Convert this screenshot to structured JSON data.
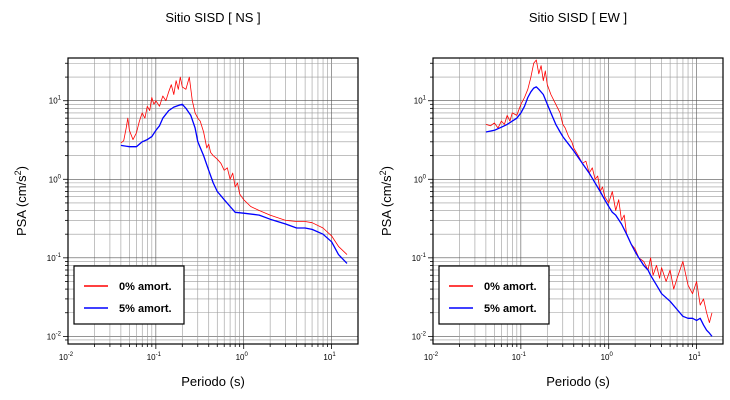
{
  "chart_data": [
    {
      "type": "line",
      "title": "Sitio SISD [ NS ]",
      "xlabel": "Periodo (s)",
      "ylabel_main": "PSA (cm/s",
      "ylabel_sup": "2",
      "ylabel_end": ")",
      "xscale": "log",
      "yscale": "log",
      "xlim": [
        0.01,
        20
      ],
      "ylim": [
        0.008,
        35
      ],
      "grid": true,
      "legend_position": "bottom-left",
      "xticks": [
        {
          "base": "10",
          "exp": "-2",
          "value": 0.01
        },
        {
          "base": "10",
          "exp": "-1",
          "value": 0.1
        },
        {
          "base": "10",
          "exp": "0",
          "value": 1
        },
        {
          "base": "10",
          "exp": "1",
          "value": 10
        }
      ],
      "yticks": [
        {
          "base": "10",
          "exp": "-2",
          "value": 0.01
        },
        {
          "base": "10",
          "exp": "-1",
          "value": 0.1
        },
        {
          "base": "10",
          "exp": "0",
          "value": 1
        },
        {
          "base": "10",
          "exp": "1",
          "value": 10
        }
      ],
      "series": [
        {
          "name": "0% amort.",
          "color": "#ff0000",
          "points": [
            [
              0.04,
              2.9
            ],
            [
              0.043,
              3.1
            ],
            [
              0.046,
              4.5
            ],
            [
              0.048,
              6.0
            ],
            [
              0.05,
              4.2
            ],
            [
              0.055,
              3.2
            ],
            [
              0.06,
              3.9
            ],
            [
              0.065,
              5.5
            ],
            [
              0.07,
              7.0
            ],
            [
              0.075,
              6.0
            ],
            [
              0.08,
              8.5
            ],
            [
              0.085,
              7.5
            ],
            [
              0.09,
              11.0
            ],
            [
              0.095,
              9.0
            ],
            [
              0.1,
              10.0
            ],
            [
              0.11,
              8.5
            ],
            [
              0.12,
              11.5
            ],
            [
              0.13,
              10.0
            ],
            [
              0.14,
              13.0
            ],
            [
              0.15,
              16.0
            ],
            [
              0.16,
              12.0
            ],
            [
              0.17,
              18.0
            ],
            [
              0.18,
              14.0
            ],
            [
              0.19,
              20.0
            ],
            [
              0.2,
              15.0
            ],
            [
              0.22,
              14.0
            ],
            [
              0.24,
              20.0
            ],
            [
              0.26,
              10.0
            ],
            [
              0.28,
              7.0
            ],
            [
              0.3,
              6.0
            ],
            [
              0.32,
              5.5
            ],
            [
              0.35,
              4.0
            ],
            [
              0.38,
              2.5
            ],
            [
              0.4,
              2.8
            ],
            [
              0.42,
              2.2
            ],
            [
              0.45,
              2.0
            ],
            [
              0.5,
              1.8
            ],
            [
              0.55,
              1.6
            ],
            [
              0.6,
              1.3
            ],
            [
              0.65,
              1.4
            ],
            [
              0.7,
              1.0
            ],
            [
              0.75,
              1.2
            ],
            [
              0.8,
              0.8
            ],
            [
              0.85,
              0.9
            ],
            [
              0.9,
              0.65
            ],
            [
              1.0,
              0.55
            ],
            [
              1.2,
              0.45
            ],
            [
              1.5,
              0.4
            ],
            [
              2.0,
              0.35
            ],
            [
              3.0,
              0.3
            ],
            [
              4.0,
              0.29
            ],
            [
              5.0,
              0.29
            ],
            [
              6.0,
              0.28
            ],
            [
              8.0,
              0.24
            ],
            [
              10.0,
              0.19
            ],
            [
              12.0,
              0.14
            ],
            [
              15.0,
              0.11
            ]
          ]
        },
        {
          "name": "5% amort.",
          "color": "#0000ff",
          "points": [
            [
              0.04,
              2.7
            ],
            [
              0.05,
              2.6
            ],
            [
              0.06,
              2.6
            ],
            [
              0.07,
              3.0
            ],
            [
              0.08,
              3.2
            ],
            [
              0.09,
              3.5
            ],
            [
              0.1,
              4.2
            ],
            [
              0.11,
              4.8
            ],
            [
              0.12,
              6.0
            ],
            [
              0.14,
              7.5
            ],
            [
              0.16,
              8.3
            ],
            [
              0.18,
              8.7
            ],
            [
              0.2,
              9.0
            ],
            [
              0.22,
              8.0
            ],
            [
              0.25,
              6.5
            ],
            [
              0.28,
              4.5
            ],
            [
              0.3,
              3.0
            ],
            [
              0.35,
              2.0
            ],
            [
              0.4,
              1.3
            ],
            [
              0.45,
              0.9
            ],
            [
              0.5,
              0.7
            ],
            [
              0.6,
              0.55
            ],
            [
              0.7,
              0.45
            ],
            [
              0.8,
              0.38
            ],
            [
              1.0,
              0.37
            ],
            [
              1.5,
              0.35
            ],
            [
              2.0,
              0.31
            ],
            [
              3.0,
              0.27
            ],
            [
              4.0,
              0.24
            ],
            [
              5.0,
              0.24
            ],
            [
              6.0,
              0.23
            ],
            [
              8.0,
              0.2
            ],
            [
              10.0,
              0.16
            ],
            [
              12.0,
              0.11
            ],
            [
              15.0,
              0.085
            ]
          ]
        }
      ]
    },
    {
      "type": "line",
      "title": "Sitio SISD [ EW ]",
      "xlabel": "Periodo (s)",
      "ylabel_main": "PSA (cm/s",
      "ylabel_sup": "2",
      "ylabel_end": ")",
      "xscale": "log",
      "yscale": "log",
      "xlim": [
        0.01,
        20
      ],
      "ylim": [
        0.008,
        35
      ],
      "grid": true,
      "legend_position": "bottom-left",
      "xticks": [
        {
          "base": "10",
          "exp": "-2",
          "value": 0.01
        },
        {
          "base": "10",
          "exp": "-1",
          "value": 0.1
        },
        {
          "base": "10",
          "exp": "0",
          "value": 1
        },
        {
          "base": "10",
          "exp": "1",
          "value": 10
        }
      ],
      "yticks": [
        {
          "base": "10",
          "exp": "-2",
          "value": 0.01
        },
        {
          "base": "10",
          "exp": "-1",
          "value": 0.1
        },
        {
          "base": "10",
          "exp": "0",
          "value": 1
        },
        {
          "base": "10",
          "exp": "1",
          "value": 10
        }
      ],
      "series": [
        {
          "name": "0% amort.",
          "color": "#ff0000",
          "points": [
            [
              0.04,
              5.0
            ],
            [
              0.045,
              4.8
            ],
            [
              0.05,
              5.2
            ],
            [
              0.055,
              4.5
            ],
            [
              0.06,
              5.5
            ],
            [
              0.065,
              5.0
            ],
            [
              0.07,
              6.5
            ],
            [
              0.075,
              5.5
            ],
            [
              0.08,
              7.0
            ],
            [
              0.09,
              6.5
            ],
            [
              0.1,
              9.0
            ],
            [
              0.11,
              11.0
            ],
            [
              0.12,
              14.0
            ],
            [
              0.13,
              20.0
            ],
            [
              0.14,
              30.0
            ],
            [
              0.15,
              33.0
            ],
            [
              0.16,
              22.0
            ],
            [
              0.17,
              28.0
            ],
            [
              0.18,
              18.0
            ],
            [
              0.19,
              24.0
            ],
            [
              0.2,
              16.0
            ],
            [
              0.22,
              12.0
            ],
            [
              0.25,
              9.0
            ],
            [
              0.28,
              7.0
            ],
            [
              0.3,
              5.0
            ],
            [
              0.32,
              4.5
            ],
            [
              0.35,
              3.5
            ],
            [
              0.38,
              3.0
            ],
            [
              0.4,
              2.5
            ],
            [
              0.45,
              2.0
            ],
            [
              0.5,
              1.6
            ],
            [
              0.55,
              1.7
            ],
            [
              0.6,
              1.2
            ],
            [
              0.65,
              1.4
            ],
            [
              0.7,
              1.0
            ],
            [
              0.75,
              1.1
            ],
            [
              0.8,
              0.7
            ],
            [
              0.85,
              0.8
            ],
            [
              0.9,
              0.6
            ],
            [
              1.0,
              0.5
            ],
            [
              1.1,
              0.7
            ],
            [
              1.2,
              0.4
            ],
            [
              1.3,
              0.55
            ],
            [
              1.4,
              0.3
            ],
            [
              1.5,
              0.35
            ],
            [
              1.6,
              0.2
            ],
            [
              1.8,
              0.15
            ],
            [
              2.0,
              0.13
            ],
            [
              2.2,
              0.1
            ],
            [
              2.5,
              0.09
            ],
            [
              2.8,
              0.07
            ],
            [
              3.0,
              0.1
            ],
            [
              3.2,
              0.06
            ],
            [
              3.5,
              0.08
            ],
            [
              3.8,
              0.055
            ],
            [
              4.0,
              0.075
            ],
            [
              4.5,
              0.05
            ],
            [
              5.0,
              0.07
            ],
            [
              5.5,
              0.04
            ],
            [
              6.0,
              0.055
            ],
            [
              7.0,
              0.09
            ],
            [
              8.0,
              0.045
            ],
            [
              9.0,
              0.035
            ],
            [
              10.0,
              0.05
            ],
            [
              11.0,
              0.025
            ],
            [
              12.0,
              0.03
            ],
            [
              13.0,
              0.02
            ],
            [
              14.0,
              0.015
            ],
            [
              15.0,
              0.02
            ]
          ]
        },
        {
          "name": "5% amort.",
          "color": "#0000ff",
          "points": [
            [
              0.04,
              4.0
            ],
            [
              0.05,
              4.2
            ],
            [
              0.06,
              4.6
            ],
            [
              0.07,
              5.0
            ],
            [
              0.08,
              5.5
            ],
            [
              0.09,
              6.0
            ],
            [
              0.1,
              7.0
            ],
            [
              0.11,
              8.5
            ],
            [
              0.12,
              11.0
            ],
            [
              0.13,
              13.0
            ],
            [
              0.14,
              14.5
            ],
            [
              0.15,
              15.0
            ],
            [
              0.16,
              14.0
            ],
            [
              0.18,
              12.0
            ],
            [
              0.2,
              9.0
            ],
            [
              0.22,
              7.0
            ],
            [
              0.25,
              5.0
            ],
            [
              0.28,
              4.0
            ],
            [
              0.3,
              3.5
            ],
            [
              0.35,
              2.8
            ],
            [
              0.4,
              2.3
            ],
            [
              0.45,
              1.9
            ],
            [
              0.5,
              1.6
            ],
            [
              0.6,
              1.2
            ],
            [
              0.7,
              0.9
            ],
            [
              0.8,
              0.7
            ],
            [
              0.9,
              0.55
            ],
            [
              1.0,
              0.45
            ],
            [
              1.1,
              0.38
            ],
            [
              1.2,
              0.35
            ],
            [
              1.4,
              0.27
            ],
            [
              1.6,
              0.2
            ],
            [
              1.8,
              0.15
            ],
            [
              2.0,
              0.12
            ],
            [
              2.2,
              0.1
            ],
            [
              2.5,
              0.08
            ],
            [
              2.8,
              0.07
            ],
            [
              3.0,
              0.06
            ],
            [
              3.5,
              0.045
            ],
            [
              4.0,
              0.035
            ],
            [
              5.0,
              0.028
            ],
            [
              6.0,
              0.022
            ],
            [
              7.0,
              0.018
            ],
            [
              8.0,
              0.017
            ],
            [
              9.0,
              0.017
            ],
            [
              10.0,
              0.016
            ],
            [
              11.0,
              0.017
            ],
            [
              12.0,
              0.014
            ],
            [
              13.0,
              0.012
            ],
            [
              14.0,
              0.011
            ],
            [
              15.0,
              0.01
            ]
          ]
        }
      ]
    }
  ]
}
